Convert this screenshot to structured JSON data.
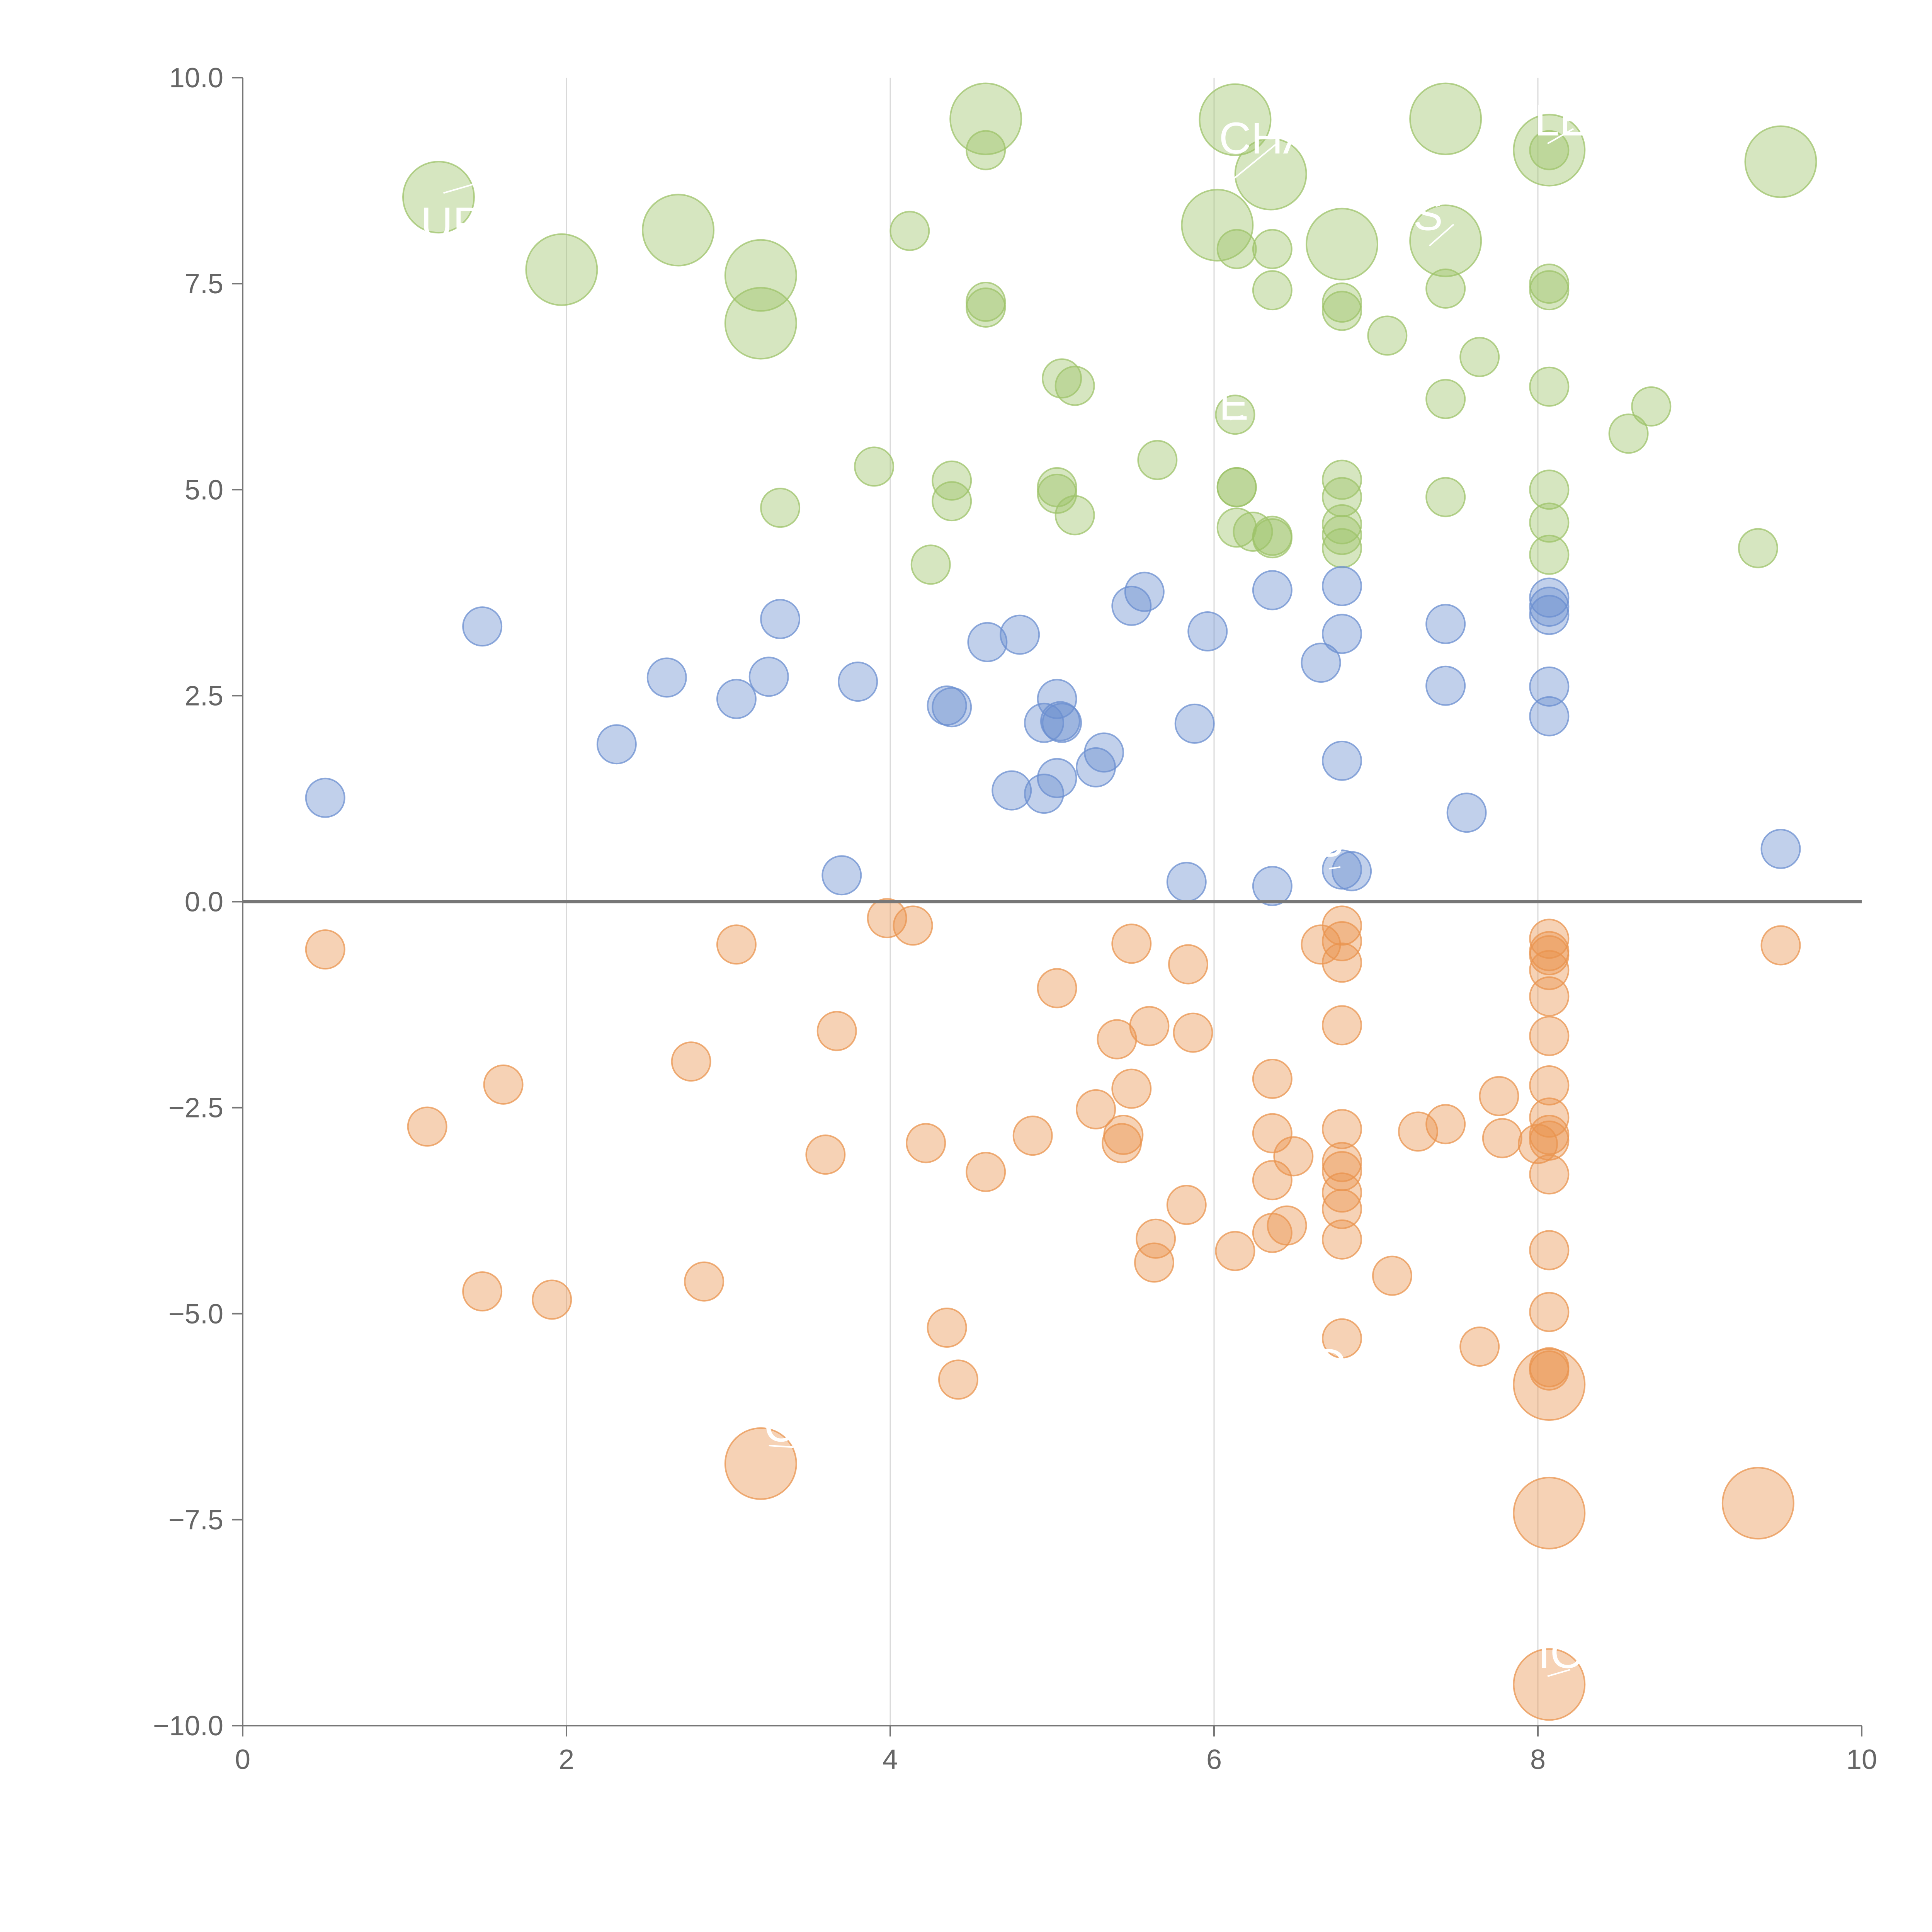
{
  "chart_data": {
    "type": "scatter",
    "title": "",
    "xlabel": "",
    "ylabel": "",
    "xlim": [
      0,
      10
    ],
    "ylim": [
      -10,
      10
    ],
    "x_ticks": [
      "0",
      "2",
      "4",
      "6",
      "8",
      "10"
    ],
    "y_ticks": [
      "10.0",
      "7.5",
      "5.0",
      "2.5",
      "0.0",
      "−2.5",
      "−5.0",
      "−7.5",
      "−10.0"
    ],
    "grid": "vertical",
    "zero_line": true,
    "colors": {
      "green": "#9dc36a",
      "blue": "#6b8fd0",
      "orange": "#e9944f",
      "axis": "#777777",
      "grid": "#d9d9d9"
    },
    "series": [
      {
        "color": "green",
        "points": [
          [
            1.21,
            8.55,
            "large"
          ],
          [
            1.97,
            7.67,
            "large"
          ],
          [
            2.69,
            8.15,
            "large"
          ],
          [
            3.2,
            7.6,
            "large"
          ],
          [
            3.2,
            7.02,
            "large"
          ],
          [
            4.59,
            9.5,
            "large"
          ],
          [
            4.59,
            9.12,
            "small"
          ],
          [
            4.12,
            8.14,
            "small"
          ],
          [
            6.13,
            9.49,
            "large"
          ],
          [
            6.35,
            8.83,
            "large"
          ],
          [
            6.02,
            8.21,
            "large"
          ],
          [
            7.43,
            9.5,
            "large"
          ],
          [
            7.43,
            8.02,
            "large"
          ],
          [
            6.79,
            7.98,
            "large"
          ],
          [
            8.07,
            9.12,
            "large"
          ],
          [
            8.07,
            9.12,
            "small"
          ],
          [
            9.5,
            8.98,
            "large"
          ],
          [
            6.14,
            7.92,
            "small"
          ],
          [
            6.36,
            7.92,
            "small"
          ],
          [
            6.36,
            7.42,
            "small"
          ],
          [
            6.79,
            7.27,
            "small"
          ],
          [
            6.79,
            7.17,
            "small"
          ],
          [
            4.59,
            7.28,
            "small"
          ],
          [
            4.59,
            7.21,
            "small"
          ],
          [
            7.43,
            7.44,
            "small"
          ],
          [
            8.07,
            7.5,
            "small"
          ],
          [
            8.07,
            7.42,
            "small"
          ],
          [
            7.07,
            6.87,
            "small"
          ],
          [
            7.64,
            6.61,
            "small"
          ],
          [
            5.06,
            6.35,
            "small"
          ],
          [
            5.14,
            6.26,
            "small"
          ],
          [
            7.43,
            6.1,
            "small"
          ],
          [
            8.07,
            6.25,
            "small"
          ],
          [
            8.7,
            6.01,
            "small"
          ],
          [
            8.56,
            5.68,
            "small"
          ],
          [
            6.13,
            5.91,
            "small"
          ],
          [
            3.9,
            5.28,
            "small"
          ],
          [
            5.65,
            5.36,
            "small"
          ],
          [
            4.38,
            5.11,
            "small"
          ],
          [
            4.38,
            4.86,
            "small"
          ],
          [
            5.03,
            5.03,
            "small"
          ],
          [
            5.03,
            4.95,
            "small"
          ],
          [
            5.14,
            4.69,
            "small"
          ],
          [
            3.32,
            4.78,
            "small"
          ],
          [
            4.25,
            4.09,
            "small"
          ],
          [
            6.14,
            5.03,
            "small"
          ],
          [
            6.14,
            5.03,
            "small"
          ],
          [
            6.14,
            4.54,
            "small"
          ],
          [
            6.24,
            4.49,
            "small"
          ],
          [
            6.36,
            4.44,
            "small"
          ],
          [
            6.36,
            4.41,
            "small"
          ],
          [
            6.79,
            5.12,
            "small"
          ],
          [
            6.79,
            4.91,
            "small"
          ],
          [
            6.79,
            4.58,
            "small"
          ],
          [
            6.79,
            4.45,
            "small"
          ],
          [
            6.79,
            4.29,
            "small"
          ],
          [
            7.43,
            4.91,
            "small"
          ],
          [
            8.07,
            5.0,
            "small"
          ],
          [
            8.07,
            4.6,
            "small"
          ],
          [
            8.07,
            4.21,
            "small"
          ],
          [
            9.36,
            4.29,
            "small"
          ]
        ]
      },
      {
        "color": "blue",
        "points": [
          [
            0.51,
            1.26,
            "small"
          ],
          [
            1.48,
            3.34,
            "small"
          ],
          [
            2.31,
            1.91,
            "small"
          ],
          [
            2.62,
            2.72,
            "small"
          ],
          [
            3.05,
            2.46,
            "small"
          ],
          [
            3.25,
            2.73,
            "small"
          ],
          [
            3.32,
            3.43,
            "small"
          ],
          [
            3.7,
            0.32,
            "small"
          ],
          [
            3.8,
            2.67,
            "small"
          ],
          [
            4.35,
            2.38,
            "small"
          ],
          [
            4.38,
            2.36,
            "small"
          ],
          [
            4.6,
            3.15,
            "small"
          ],
          [
            4.8,
            3.24,
            "small"
          ],
          [
            4.75,
            1.35,
            "small"
          ],
          [
            4.95,
            1.31,
            "small"
          ],
          [
            5.03,
            1.5,
            "small"
          ],
          [
            4.95,
            2.17,
            "small"
          ],
          [
            5.03,
            2.46,
            "small"
          ],
          [
            5.05,
            2.19,
            "small"
          ],
          [
            5.06,
            2.17,
            "small"
          ],
          [
            5.27,
            1.63,
            "small"
          ],
          [
            5.32,
            1.81,
            "small"
          ],
          [
            5.49,
            3.59,
            "small"
          ],
          [
            5.57,
            3.76,
            "small"
          ],
          [
            5.83,
            0.24,
            "small"
          ],
          [
            5.88,
            2.16,
            "small"
          ],
          [
            5.96,
            3.28,
            "small"
          ],
          [
            6.36,
            3.78,
            "small"
          ],
          [
            6.36,
            0.19,
            "small"
          ],
          [
            6.66,
            2.9,
            "small"
          ],
          [
            6.79,
            3.83,
            "small"
          ],
          [
            6.79,
            3.25,
            "small"
          ],
          [
            6.79,
            1.71,
            "small"
          ],
          [
            6.79,
            0.39,
            "small"
          ],
          [
            6.85,
            0.37,
            "small"
          ],
          [
            7.43,
            3.37,
            "small"
          ],
          [
            7.43,
            2.62,
            "small"
          ],
          [
            7.56,
            1.08,
            "small"
          ],
          [
            8.07,
            3.69,
            "small"
          ],
          [
            8.07,
            3.58,
            "small"
          ],
          [
            8.07,
            3.48,
            "small"
          ],
          [
            8.07,
            2.61,
            "small"
          ],
          [
            8.07,
            2.25,
            "small"
          ],
          [
            9.5,
            0.64,
            "small"
          ]
        ]
      },
      {
        "color": "orange",
        "points": [
          [
            0.51,
            -0.58,
            "small"
          ],
          [
            1.14,
            -2.73,
            "small"
          ],
          [
            1.61,
            -2.22,
            "small"
          ],
          [
            1.48,
            -4.73,
            "small"
          ],
          [
            1.91,
            -4.83,
            "small"
          ],
          [
            2.77,
            -1.94,
            "small"
          ],
          [
            2.85,
            -4.61,
            "small"
          ],
          [
            3.05,
            -0.52,
            "small"
          ],
          [
            3.6,
            -3.07,
            "small"
          ],
          [
            3.67,
            -1.57,
            "small"
          ],
          [
            3.98,
            -0.2,
            "small"
          ],
          [
            4.14,
            -0.29,
            "small"
          ],
          [
            4.22,
            -2.93,
            "small"
          ],
          [
            4.35,
            -5.17,
            "small"
          ],
          [
            4.42,
            -5.8,
            "small"
          ],
          [
            4.59,
            -3.28,
            "small"
          ],
          [
            4.88,
            -2.84,
            "small"
          ],
          [
            5.03,
            -1.05,
            "small"
          ],
          [
            5.27,
            -2.52,
            "small"
          ],
          [
            5.4,
            -1.67,
            "small"
          ],
          [
            5.44,
            -2.83,
            "small"
          ],
          [
            5.43,
            -2.93,
            "small"
          ],
          [
            5.49,
            -0.51,
            "small"
          ],
          [
            5.49,
            -2.27,
            "small"
          ],
          [
            5.6,
            -1.51,
            "small"
          ],
          [
            5.64,
            -4.09,
            "small"
          ],
          [
            5.63,
            -4.38,
            "small"
          ],
          [
            5.83,
            -3.68,
            "small"
          ],
          [
            5.84,
            -0.76,
            "small"
          ],
          [
            5.87,
            -1.59,
            "small"
          ],
          [
            6.13,
            -4.24,
            "small"
          ],
          [
            6.36,
            -2.15,
            "small"
          ],
          [
            6.36,
            -2.81,
            "small"
          ],
          [
            6.36,
            -3.38,
            "small"
          ],
          [
            6.36,
            -4.02,
            "small"
          ],
          [
            6.45,
            -3.93,
            "small"
          ],
          [
            6.49,
            -3.09,
            "small"
          ],
          [
            6.66,
            -0.52,
            "small"
          ],
          [
            6.79,
            -0.29,
            "small"
          ],
          [
            6.79,
            -0.48,
            "small"
          ],
          [
            6.79,
            -0.74,
            "small"
          ],
          [
            6.79,
            -1.5,
            "small"
          ],
          [
            6.79,
            -2.76,
            "small"
          ],
          [
            6.79,
            -3.16,
            "small"
          ],
          [
            6.79,
            -3.27,
            "small"
          ],
          [
            6.79,
            -3.53,
            "small"
          ],
          [
            6.79,
            -3.73,
            "small"
          ],
          [
            6.79,
            -4.1,
            "small"
          ],
          [
            6.79,
            -5.3,
            "small"
          ],
          [
            7.1,
            -4.54,
            "small"
          ],
          [
            7.26,
            -2.79,
            "small"
          ],
          [
            7.43,
            -2.7,
            "small"
          ],
          [
            7.64,
            -5.4,
            "small"
          ],
          [
            7.76,
            -2.36,
            "small"
          ],
          [
            7.78,
            -2.87,
            "small"
          ],
          [
            8.0,
            -2.94,
            "small"
          ],
          [
            8.07,
            -0.45,
            "small"
          ],
          [
            8.07,
            -0.6,
            "small"
          ],
          [
            8.07,
            -0.65,
            "small"
          ],
          [
            8.07,
            -0.83,
            "small"
          ],
          [
            8.07,
            -1.15,
            "small"
          ],
          [
            8.07,
            -1.63,
            "small"
          ],
          [
            8.07,
            -2.23,
            "small"
          ],
          [
            8.07,
            -2.62,
            "small"
          ],
          [
            8.07,
            -2.83,
            "small"
          ],
          [
            8.07,
            -2.9,
            "small"
          ],
          [
            8.07,
            -3.31,
            "small"
          ],
          [
            8.07,
            -4.23,
            "small"
          ],
          [
            8.07,
            -4.98,
            "small"
          ],
          [
            8.07,
            -5.65,
            "small"
          ],
          [
            8.07,
            -5.69,
            "small"
          ],
          [
            8.07,
            -5.86,
            "large"
          ],
          [
            8.07,
            -7.42,
            "large"
          ],
          [
            8.07,
            -9.5,
            "large"
          ],
          [
            9.36,
            -7.3,
            "large"
          ],
          [
            9.5,
            -0.53,
            "small"
          ],
          [
            3.2,
            -6.82,
            "large"
          ]
        ]
      }
    ],
    "point_labels": [
      {
        "text": "UP",
        "x": 1.1,
        "y": 8.05,
        "lx": 1.24,
        "ly": 8.6,
        "ex": 1.52,
        "ey": 8.76
      },
      {
        "text": "CHA",
        "x": 6.03,
        "y": 9.08,
        "lx": 6.1,
        "ly": 8.74,
        "ex": 6.4,
        "ey": 9.22
      },
      {
        "text": "S",
        "x": 7.23,
        "y": 8.15,
        "lx": 7.33,
        "ly": 7.96,
        "ex": 7.48,
        "ey": 8.22
      },
      {
        "text": "LE",
        "x": 7.98,
        "y": 9.3,
        "lx": 8.06,
        "ly": 9.2,
        "ex": 8.22,
        "ey": 9.38
      },
      {
        "text": "E",
        "x": 6.03,
        "y": 5.85,
        "lx": 6.1,
        "ly": 5.85,
        "ex": 6.18,
        "ey": 5.9
      },
      {
        "text": "P",
        "x": 6.62,
        "y": 0.4,
        "lx": 6.71,
        "ly": 0.4,
        "ex": 6.78,
        "ey": 0.42
      },
      {
        "text": "D",
        "x": 6.62,
        "y": -5.8,
        "lx": 6.71,
        "ly": -5.76,
        "ex": 6.82,
        "ey": -5.7
      },
      {
        "text": "C",
        "x": 3.22,
        "y": -6.55,
        "lx": 3.25,
        "ly": -6.6,
        "ex": 3.4,
        "ey": -6.62
      },
      {
        "text": "IO",
        "x": 8.0,
        "y": -9.3,
        "lx": 8.06,
        "ly": -9.4,
        "ex": 8.2,
        "ey": -9.32
      }
    ]
  }
}
